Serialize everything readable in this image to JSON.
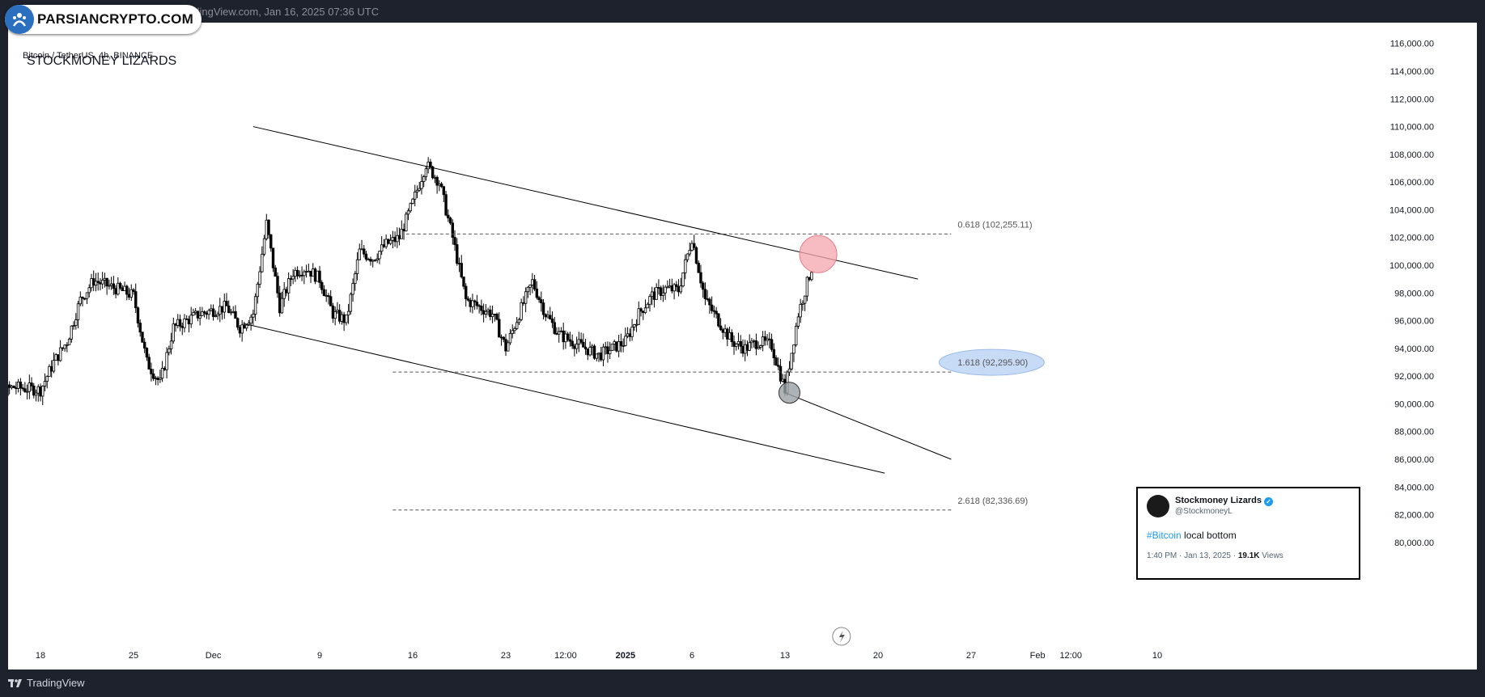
{
  "header": {
    "caption": "s… published on TradingView.com, Jan 16, 2025 07:36 UTC",
    "symbol": "Bitcoin / TetherUS, 4h, BINANCE"
  },
  "watermark": {
    "text": "PARSIANCRYPTO.COM"
  },
  "footer": {
    "brand": "TradingView"
  },
  "colors": {
    "background": "#ffffff",
    "frame": "#1e222d",
    "candle": "#000000",
    "resistance_highlight": "#f4a6ad",
    "support_highlight": "#9aa0a6",
    "fib_label_highlight": "#c7dbf7"
  },
  "tweet": {
    "name": "Stockmoney Lizards",
    "handle": "@StockmoneyL",
    "hashtag": "#Bitcoin",
    "text": " local bottom",
    "time": "1:40 PM · Jan 13, 2025 · ",
    "views_count": "19.1K",
    "views_label": " Views"
  },
  "chart_data": {
    "type": "candlestick",
    "title": "STOCKMONEY LIZARDS",
    "symbol": "Bitcoin / TetherUS",
    "interval": "4h",
    "exchange": "BINANCE",
    "ylim": [
      79000,
      117500
    ],
    "y_axis_labels": [
      "116,000.00",
      "114,000.00",
      "112,000.00",
      "110,000.00",
      "108,000.00",
      "106,000.00",
      "104,000.00",
      "102,000.00",
      "100,000.00",
      "98,000.00",
      "96,000.00",
      "94,000.00",
      "92,000.00",
      "90,000.00",
      "88,000.00",
      "86,000.00",
      "84,000.00",
      "82,000.00",
      "80,000.00"
    ],
    "x_axis_labels": [
      "18",
      "25",
      "Dec",
      "9",
      "16",
      "23",
      "12:00",
      "2025",
      "6",
      "13",
      "20",
      "27",
      "Feb",
      "12:00",
      "10"
    ],
    "x_axis_bold": [
      "2025"
    ],
    "grid": false,
    "price_path": [
      [
        "2024-11-13",
        88500
      ],
      [
        "2024-11-14",
        90500
      ],
      [
        "2024-11-16",
        91200
      ],
      [
        "2024-11-18",
        91000
      ],
      [
        "2024-11-19",
        93000
      ],
      [
        "2024-11-20",
        94500
      ],
      [
        "2024-11-21",
        97500
      ],
      [
        "2024-11-22",
        98900
      ],
      [
        "2024-11-24",
        98200
      ],
      [
        "2024-11-25",
        97800
      ],
      [
        "2024-11-26",
        93000
      ],
      [
        "2024-11-27",
        91500
      ],
      [
        "2024-11-28",
        95500
      ],
      [
        "2024-11-30",
        96500
      ],
      [
        "2024-12-02",
        97000
      ],
      [
        "2024-12-03",
        95500
      ],
      [
        "2024-12-04",
        96500
      ],
      [
        "2024-12-05",
        103000
      ],
      [
        "2024-12-06",
        97000
      ],
      [
        "2024-12-07",
        99500
      ],
      [
        "2024-12-08",
        99800
      ],
      [
        "2024-12-09",
        99000
      ],
      [
        "2024-12-10",
        96500
      ],
      [
        "2024-12-11",
        96000
      ],
      [
        "2024-12-12",
        101000
      ],
      [
        "2024-12-13",
        100500
      ],
      [
        "2024-12-14",
        101500
      ],
      [
        "2024-12-15",
        102000
      ],
      [
        "2024-12-16",
        104500
      ],
      [
        "2024-12-17",
        107300
      ],
      [
        "2024-12-18",
        106000
      ],
      [
        "2024-12-19",
        102000
      ],
      [
        "2024-12-20",
        97500
      ],
      [
        "2024-12-21",
        97000
      ],
      [
        "2024-12-22",
        96500
      ],
      [
        "2024-12-23",
        94000
      ],
      [
        "2024-12-24",
        96500
      ],
      [
        "2024-12-25",
        98800
      ],
      [
        "2024-12-26",
        96500
      ],
      [
        "2024-12-27",
        95000
      ],
      [
        "2024-12-28",
        94500
      ],
      [
        "2024-12-29",
        94000
      ],
      [
        "2024-12-30",
        93500
      ],
      [
        "2024-12-31",
        94000
      ],
      [
        "2025-01-01",
        94500
      ],
      [
        "2025-01-02",
        96500
      ],
      [
        "2025-01-03",
        97800
      ],
      [
        "2025-01-04",
        98300
      ],
      [
        "2025-01-05",
        98200
      ],
      [
        "2025-01-06",
        102000
      ],
      [
        "2025-01-07",
        97500
      ],
      [
        "2025-01-08",
        96000
      ],
      [
        "2025-01-09",
        94500
      ],
      [
        "2025-01-10",
        94000
      ],
      [
        "2025-01-11",
        94500
      ],
      [
        "2025-01-12",
        94200
      ],
      [
        "2025-01-13",
        91000
      ],
      [
        "2025-01-14",
        96500
      ],
      [
        "2025-01-15",
        99800
      ]
    ],
    "annotations": {
      "trendlines": [
        {
          "name": "upper-channel-line",
          "from": [
            "2024-12-04T00:00",
            110000
          ],
          "to": [
            "2025-01-23T00:00",
            99000
          ]
        },
        {
          "name": "lower-channel-line",
          "from": [
            "2024-12-03T06:00",
            95800
          ],
          "to": [
            "2025-01-20T12:00",
            85000
          ]
        },
        {
          "name": "tweet-pointer-line",
          "from": [
            "2025-01-13T00:00",
            90800
          ],
          "to": [
            "2025-01-25T12:00",
            86000
          ]
        }
      ],
      "horizontal_levels": [
        {
          "name": "fib-0618-line",
          "value": 102255.11,
          "from": "2024-12-15T12:00",
          "to": "2025-01-25T12:00",
          "label": "0.618 (102,255.11)"
        },
        {
          "name": "fib-1618-line",
          "value": 92295.9,
          "from": "2024-12-14T12:00",
          "to": "2025-01-25T12:00",
          "label": "1.618 (92,295.90)"
        },
        {
          "name": "fib-2618-line",
          "value": 82336.69,
          "from": "2024-12-14T12:00",
          "to": "2025-01-25T12:00",
          "label": "2.618 (82,336.69)"
        }
      ],
      "circles": [
        {
          "name": "resistance-touch-circle",
          "at": [
            "2025-01-15T12:00",
            100800
          ],
          "color": "#f4a6ad"
        },
        {
          "name": "local-bottom-circle",
          "at": [
            "2025-01-13T08:00",
            90800
          ],
          "color": "#9aa0a6"
        }
      ]
    }
  }
}
